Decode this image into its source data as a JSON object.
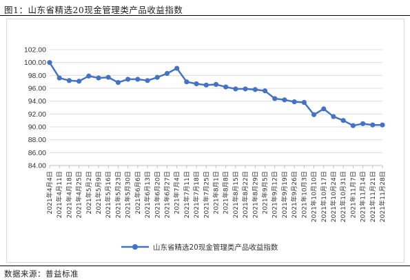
{
  "figure": {
    "title": "图1：山东省精选20现金管理类产品收益指数",
    "source": "数据来源：普益标准"
  },
  "colors": {
    "series": "#4472c4",
    "grid": "#d9d9d9"
  },
  "chart_data": {
    "type": "line",
    "title": "",
    "xlabel": "",
    "ylabel": "",
    "ylim": [
      84.0,
      102.0
    ],
    "yticks": [
      "102.00",
      "100.00",
      "98.00",
      "96.00",
      "94.00",
      "92.00",
      "90.00",
      "88.00",
      "86.00",
      "84.00"
    ],
    "grid": "horizontal",
    "legend": "bottom-center",
    "categories": [
      "2021年4月4日",
      "2021年4月11日",
      "2021年4月18日",
      "2021年4月25日",
      "2021年5月2日",
      "2021年5月9日",
      "2021年5月16日",
      "2021年5月23日",
      "2021年5月30日",
      "2021年6月6日",
      "2021年6月13日",
      "2021年6月20日",
      "2021年6月27日",
      "2021年7月4日",
      "2021年7月11日",
      "2021年7月18日",
      "2021年7月25日",
      "2021年8月1日",
      "2021年8月8日",
      "2021年8月15日",
      "2021年8月22日",
      "2021年8月29日",
      "2021年9月5日",
      "2021年9月12日",
      "2021年9月19日",
      "2021年9月26日",
      "2021年10月3日",
      "2021年10月10日",
      "2021年10月17日",
      "2021年10月24日",
      "2021年10月31日",
      "2021年11月7日",
      "2021年11月14日",
      "2021年11月21日",
      "2021年11月28日"
    ],
    "series": [
      {
        "name": "山东省精选20现金管理类产品收益指数",
        "values": [
          100.0,
          97.6,
          97.2,
          97.1,
          97.9,
          97.6,
          97.7,
          96.9,
          97.4,
          97.4,
          97.2,
          97.7,
          98.3,
          99.1,
          97.0,
          96.7,
          96.5,
          96.6,
          96.2,
          95.9,
          95.9,
          95.8,
          95.6,
          94.4,
          94.2,
          93.9,
          93.8,
          91.9,
          92.8,
          91.6,
          91.0,
          90.2,
          90.5,
          90.3,
          90.3
        ]
      }
    ]
  }
}
